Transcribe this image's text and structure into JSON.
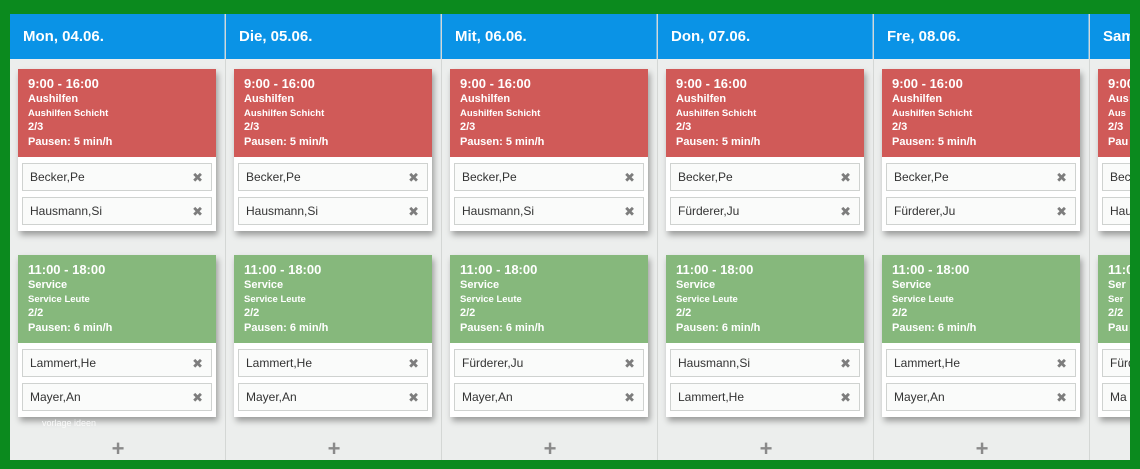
{
  "days": [
    {
      "label": "Mon, 04.06.",
      "shifts": [
        {
          "time": "9:00 - 16:00",
          "name": "Aushilfen",
          "sub": "Aushilfen Schicht",
          "count": "2/3",
          "pause": "Pausen: 5 min/h",
          "color": "#d05a58",
          "workers": [
            "Becker,Pe",
            "Hausmann,Si"
          ]
        },
        {
          "time": "11:00 - 18:00",
          "name": "Service",
          "sub": "Service Leute",
          "count": "2/2",
          "pause": "Pausen: 6 min/h",
          "color": "#86b87c",
          "workers": [
            "Lammert,He",
            "Mayer,An"
          ]
        }
      ]
    },
    {
      "label": "Die, 05.06.",
      "shifts": [
        {
          "time": "9:00 - 16:00",
          "name": "Aushilfen",
          "sub": "Aushilfen Schicht",
          "count": "2/3",
          "pause": "Pausen: 5 min/h",
          "color": "#d05a58",
          "workers": [
            "Becker,Pe",
            "Hausmann,Si"
          ]
        },
        {
          "time": "11:00 - 18:00",
          "name": "Service",
          "sub": "Service Leute",
          "count": "2/2",
          "pause": "Pausen: 6 min/h",
          "color": "#86b87c",
          "workers": [
            "Lammert,He",
            "Mayer,An"
          ]
        }
      ]
    },
    {
      "label": "Mit, 06.06.",
      "shifts": [
        {
          "time": "9:00 - 16:00",
          "name": "Aushilfen",
          "sub": "Aushilfen Schicht",
          "count": "2/3",
          "pause": "Pausen: 5 min/h",
          "color": "#d05a58",
          "workers": [
            "Becker,Pe",
            "Hausmann,Si"
          ]
        },
        {
          "time": "11:00 - 18:00",
          "name": "Service",
          "sub": "Service Leute",
          "count": "2/2",
          "pause": "Pausen: 6 min/h",
          "color": "#86b87c",
          "workers": [
            "Fürderer,Ju",
            "Mayer,An"
          ]
        }
      ]
    },
    {
      "label": "Don, 07.06.",
      "shifts": [
        {
          "time": "9:00 - 16:00",
          "name": "Aushilfen",
          "sub": "Aushilfen Schicht",
          "count": "2/3",
          "pause": "Pausen: 5 min/h",
          "color": "#d05a58",
          "workers": [
            "Becker,Pe",
            "Fürderer,Ju"
          ]
        },
        {
          "time": "11:00 - 18:00",
          "name": "Service",
          "sub": "Service Leute",
          "count": "2/2",
          "pause": "Pausen: 6 min/h",
          "color": "#86b87c",
          "workers": [
            "Hausmann,Si",
            "Lammert,He"
          ]
        }
      ]
    },
    {
      "label": "Fre, 08.06.",
      "shifts": [
        {
          "time": "9:00 - 16:00",
          "name": "Aushilfen",
          "sub": "Aushilfen Schicht",
          "count": "2/3",
          "pause": "Pausen: 5 min/h",
          "color": "#d05a58",
          "workers": [
            "Becker,Pe",
            "Fürderer,Ju"
          ]
        },
        {
          "time": "11:00 - 18:00",
          "name": "Service",
          "sub": "Service Leute",
          "count": "2/2",
          "pause": "Pausen: 6 min/h",
          "color": "#86b87c",
          "workers": [
            "Lammert,He",
            "Mayer,An"
          ]
        }
      ]
    },
    {
      "label": "Sam",
      "shifts": [
        {
          "time": "9:00",
          "name": "Aus",
          "sub": "Aus",
          "count": "2/3",
          "pause": "Pau",
          "color": "#d05a58",
          "workers": [
            "Beck",
            "Hau"
          ]
        },
        {
          "time": "11:0",
          "name": "Ser",
          "sub": "Ser",
          "count": "2/2",
          "pause": "Pau",
          "color": "#86b87c",
          "workers": [
            "Fürd",
            "Ma"
          ]
        }
      ]
    }
  ],
  "add_symbol": "+",
  "remove_symbol": "✖",
  "watermark": "vorlage ideen",
  "colors": {
    "header": "#0a93e6",
    "border": "#0b8a1e",
    "shift_red": "#d05a58",
    "shift_green": "#86b87c"
  }
}
